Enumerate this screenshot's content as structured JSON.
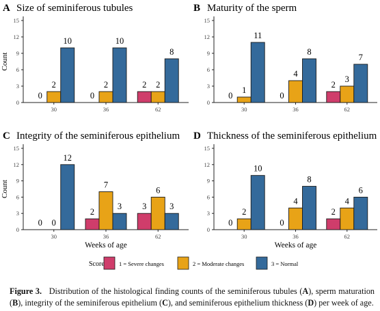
{
  "figure": {
    "legend": {
      "title": "Score",
      "items": [
        {
          "label": "1 = Severe changes",
          "color": "#cf3d6b"
        },
        {
          "label": "2 = Moderate changes",
          "color": "#e8a317"
        },
        {
          "label": "3 = Normal",
          "color": "#346a9b"
        }
      ]
    },
    "caption": {
      "label": "Figure 3.",
      "parts": [
        {
          "t": "Distribution of the histological finding counts of the seminiferous tubules (",
          "b": false
        },
        {
          "t": "A",
          "b": true
        },
        {
          "t": "), sperm maturation (",
          "b": false
        },
        {
          "t": "B",
          "b": true
        },
        {
          "t": "), integrity of the seminiferous epithelium (",
          "b": false
        },
        {
          "t": "C",
          "b": true
        },
        {
          "t": "), and seminiferous epithelium thickness (",
          "b": false
        },
        {
          "t": "D",
          "b": true
        },
        {
          "t": ") per week of age.",
          "b": false
        }
      ]
    }
  },
  "chart_data": [
    {
      "type": "bar",
      "panel": "A",
      "title": "Size of seminiferous tubules",
      "ylabel": "Count",
      "xlabel": "",
      "categories": [
        "30",
        "36",
        "62"
      ],
      "ylim": [
        0,
        15
      ],
      "yticks": [
        0,
        3,
        6,
        9,
        12,
        15
      ],
      "series": [
        {
          "name": "1 = Severe changes",
          "values": [
            0,
            0,
            2
          ],
          "color": "#cf3d6b"
        },
        {
          "name": "2 = Moderate changes",
          "values": [
            2,
            2,
            2
          ],
          "color": "#e8a317"
        },
        {
          "name": "3 = Normal",
          "values": [
            10,
            10,
            8
          ],
          "color": "#346a9b"
        }
      ]
    },
    {
      "type": "bar",
      "panel": "B",
      "title": "Maturity of the sperm",
      "ylabel": "",
      "xlabel": "",
      "categories": [
        "30",
        "36",
        "62"
      ],
      "ylim": [
        0,
        15
      ],
      "yticks": [
        0,
        3,
        6,
        9,
        12,
        15
      ],
      "series": [
        {
          "name": "1 = Severe changes",
          "values": [
            0,
            0,
            2
          ],
          "color": "#cf3d6b"
        },
        {
          "name": "2 = Moderate changes",
          "values": [
            1,
            4,
            3
          ],
          "color": "#e8a317"
        },
        {
          "name": "3 = Normal",
          "values": [
            11,
            8,
            7
          ],
          "color": "#346a9b"
        }
      ]
    },
    {
      "type": "bar",
      "panel": "C",
      "title": "Integrity of the seminiferous epithelium",
      "ylabel": "Count",
      "xlabel": "Weeks of age",
      "categories": [
        "30",
        "36",
        "62"
      ],
      "ylim": [
        0,
        15
      ],
      "yticks": [
        0,
        3,
        6,
        9,
        12,
        15
      ],
      "series": [
        {
          "name": "1 = Severe changes",
          "values": [
            0,
            2,
            3
          ],
          "color": "#cf3d6b"
        },
        {
          "name": "2 = Moderate changes",
          "values": [
            0,
            7,
            6
          ],
          "color": "#e8a317"
        },
        {
          "name": "3 = Normal",
          "values": [
            12,
            3,
            3
          ],
          "color": "#346a9b"
        }
      ]
    },
    {
      "type": "bar",
      "panel": "D",
      "title": "Thickness of the seminiferous epithelium",
      "ylabel": "",
      "xlabel": "Weeks of age",
      "categories": [
        "30",
        "36",
        "62"
      ],
      "ylim": [
        0,
        15
      ],
      "yticks": [
        0,
        3,
        6,
        9,
        12,
        15
      ],
      "series": [
        {
          "name": "1 = Severe changes",
          "values": [
            0,
            0,
            2
          ],
          "color": "#cf3d6b"
        },
        {
          "name": "2 = Moderate changes",
          "values": [
            2,
            4,
            4
          ],
          "color": "#e8a317"
        },
        {
          "name": "3 = Normal",
          "values": [
            10,
            8,
            6
          ],
          "color": "#346a9b"
        }
      ]
    }
  ]
}
